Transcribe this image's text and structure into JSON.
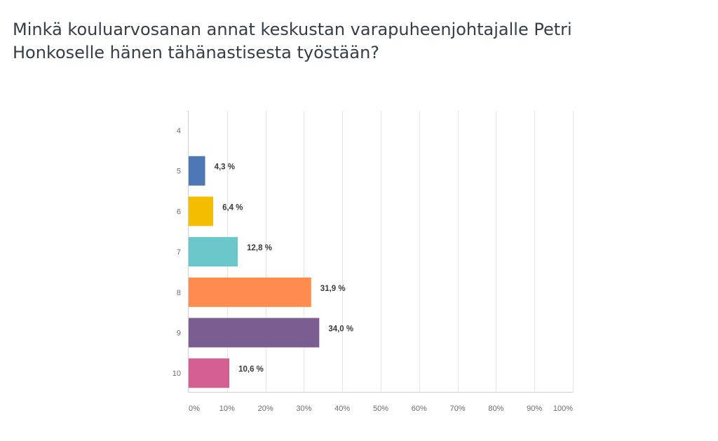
{
  "chart_data": {
    "type": "bar",
    "orientation": "horizontal",
    "title": "Minkä kouluarvosanan annat keskustan varapuheenjohtajalle Petri Honkoselle hänen tähänastisesta työstään?",
    "categories": [
      "4",
      "5",
      "6",
      "7",
      "8",
      "9",
      "10"
    ],
    "values": [
      0,
      4.3,
      6.4,
      12.8,
      31.9,
      34.0,
      10.6
    ],
    "value_labels": [
      "",
      "4,3 %",
      "6,4 %",
      "12,8 %",
      "31,9 %",
      "34,0 %",
      "10,6 %"
    ],
    "colors": [
      "#6baed6",
      "#4e77b5",
      "#f5bd00",
      "#6cc7cb",
      "#ff8b4e",
      "#7b5d91",
      "#d45e92"
    ],
    "xlim": [
      0,
      100
    ],
    "xticks": [
      0,
      10,
      20,
      30,
      40,
      50,
      60,
      70,
      80,
      90,
      100
    ],
    "xtick_labels": [
      "0%",
      "10%",
      "20%",
      "30%",
      "40%",
      "50%",
      "60%",
      "70%",
      "80%",
      "90%",
      "100%"
    ],
    "xlabel": "",
    "ylabel": "",
    "grid": "vertical",
    "legend": "none"
  }
}
